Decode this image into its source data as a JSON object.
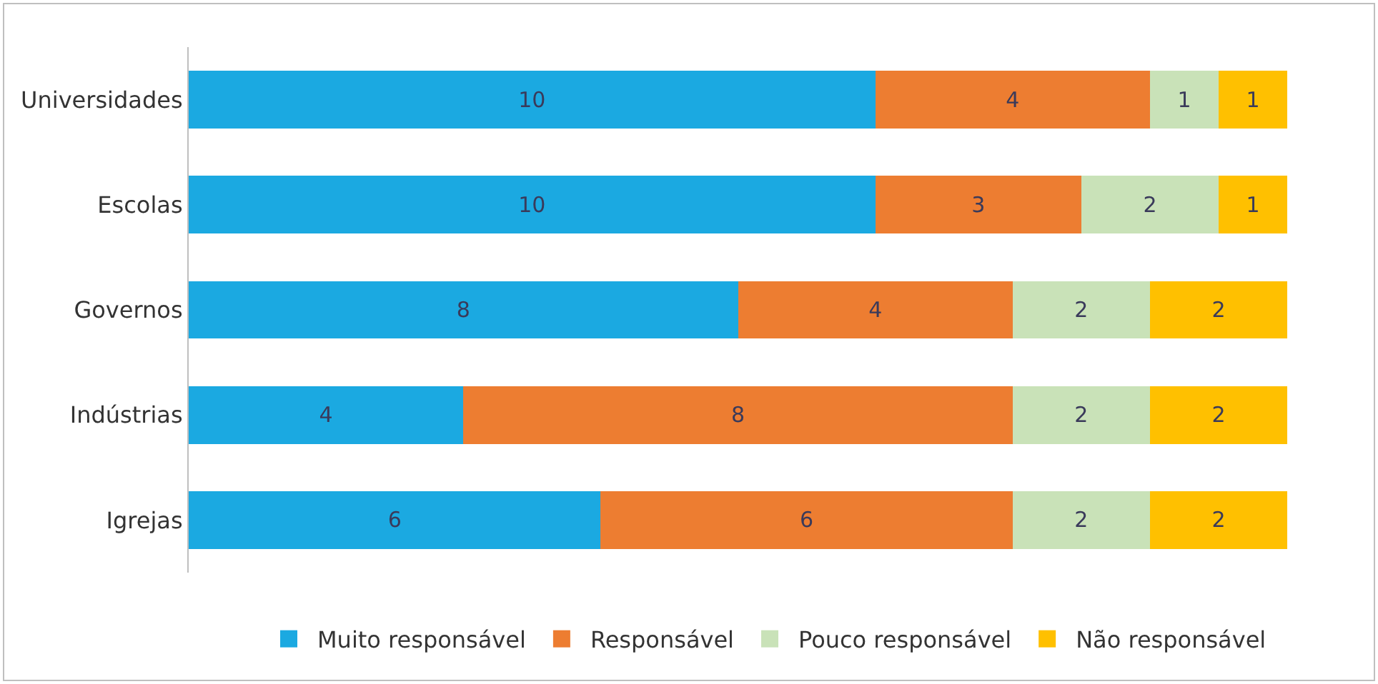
{
  "chart_data": {
    "type": "bar",
    "orientation": "horizontal",
    "stacked": true,
    "data_labels": true,
    "legend": "bottom",
    "grid": false,
    "categories": [
      "Universidades",
      "Escolas",
      "Governos",
      "Indústrias",
      "Igrejas"
    ],
    "series": [
      {
        "name": "Muito responsável",
        "color": "#1ba9e1",
        "values": [
          10,
          10,
          8,
          4,
          6
        ]
      },
      {
        "name": "Responsável",
        "color": "#ed7d31",
        "values": [
          4,
          3,
          4,
          8,
          6
        ]
      },
      {
        "name": "Pouco responsável",
        "color": "#c9e2b8",
        "values": [
          1,
          2,
          2,
          2,
          2
        ]
      },
      {
        "name": "Não responsável",
        "color": "#ffc000",
        "values": [
          1,
          1,
          2,
          2,
          2
        ]
      }
    ]
  }
}
